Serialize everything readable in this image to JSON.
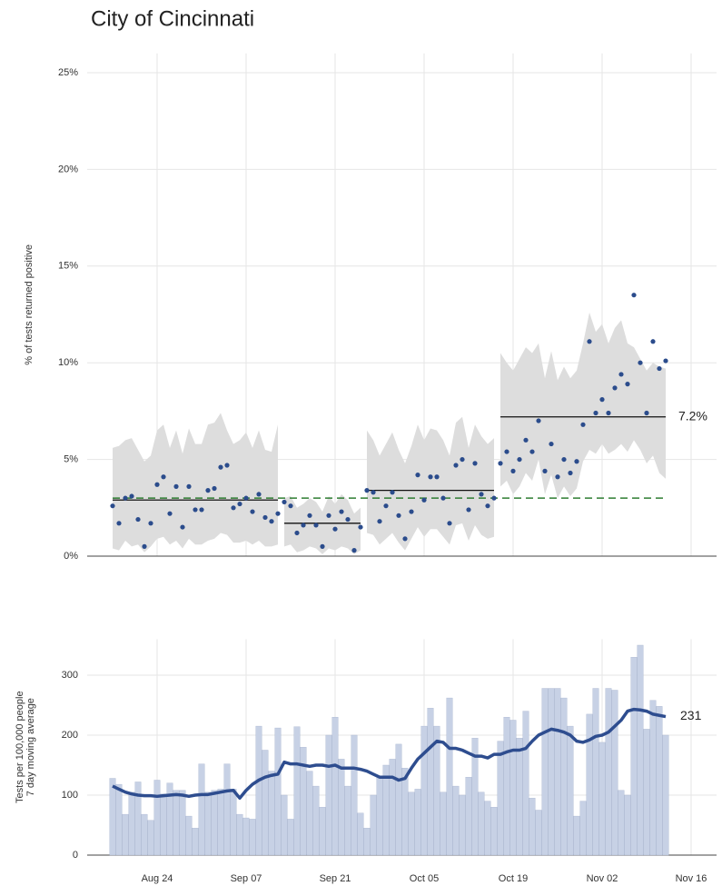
{
  "chart_data": [
    {
      "type": "scatter",
      "title": "City of Cincinnati",
      "y_label": "% of tests returned positive",
      "x": [
        -7,
        -6,
        -5,
        -4,
        -3,
        -2,
        -1,
        0,
        1,
        2,
        3,
        4,
        5,
        6,
        7,
        8,
        9,
        10,
        11,
        12,
        13,
        14,
        15,
        16,
        17,
        18,
        19,
        20,
        21,
        22,
        23,
        24,
        25,
        26,
        27,
        28,
        29,
        30,
        31,
        32,
        33,
        34,
        35,
        36,
        37,
        38,
        39,
        40,
        41,
        42,
        43,
        44,
        45,
        46,
        47,
        48,
        49,
        50,
        51,
        52,
        53,
        54,
        55,
        56,
        57,
        58,
        59,
        60,
        61,
        62,
        63,
        64,
        65,
        66,
        67,
        68,
        69,
        70,
        71,
        72,
        73,
        74,
        75,
        76,
        77,
        78,
        79,
        80
      ],
      "values": [
        2.6,
        1.7,
        3.0,
        3.1,
        1.9,
        0.5,
        1.7,
        3.7,
        4.1,
        2.2,
        3.6,
        1.5,
        3.6,
        2.4,
        2.4,
        3.4,
        3.5,
        4.6,
        4.7,
        2.5,
        2.7,
        3.0,
        2.3,
        3.2,
        2.0,
        1.8,
        2.2,
        2.8,
        2.6,
        1.2,
        1.6,
        2.1,
        1.6,
        0.5,
        2.1,
        1.4,
        2.3,
        1.9,
        0.3,
        1.5,
        3.4,
        3.3,
        1.8,
        2.6,
        3.3,
        2.1,
        0.9,
        2.3,
        4.2,
        2.9,
        4.1,
        4.1,
        3.0,
        1.7,
        4.7,
        5.0,
        2.4,
        4.8,
        3.2,
        2.6,
        3.0,
        4.8,
        5.4,
        4.4,
        5.0,
        6.0,
        5.4,
        7.0,
        4.4,
        5.8,
        4.1,
        5.0,
        4.3,
        4.9,
        6.8,
        11.1,
        7.4,
        8.1,
        7.4,
        8.7,
        9.4,
        8.9,
        13.5,
        10.0,
        7.4,
        11.1,
        9.7,
        10.1
      ],
      "band_lower": [
        0.4,
        0.3,
        0.8,
        0.5,
        0.6,
        0.2,
        0.5,
        0.9,
        1.0,
        0.6,
        0.8,
        0.4,
        0.9,
        0.6,
        0.6,
        0.8,
        0.9,
        1.2,
        1.1,
        0.7,
        0.7,
        0.8,
        0.6,
        0.8,
        0.5,
        0.5,
        0.6,
        0.5,
        0.6,
        0.2,
        0.3,
        0.5,
        0.4,
        0.1,
        0.4,
        0.3,
        0.5,
        0.4,
        0.1,
        0.3,
        1.2,
        1.1,
        0.6,
        0.9,
        1.2,
        0.7,
        0.3,
        0.9,
        1.5,
        1.0,
        1.4,
        1.4,
        1.0,
        0.6,
        1.6,
        1.7,
        0.8,
        1.6,
        1.1,
        0.9,
        1.0,
        3.6,
        3.9,
        3.2,
        3.6,
        4.3,
        3.9,
        5.0,
        3.2,
        4.2,
        3.0,
        3.6,
        3.1,
        3.5,
        4.9,
        5.5,
        5.3,
        5.8,
        5.3,
        5.5,
        5.8,
        5.4,
        6.0,
        5.5,
        4.8,
        5.2,
        4.3,
        4.0
      ],
      "band_upper": [
        5.6,
        5.7,
        6.0,
        6.1,
        5.5,
        4.9,
        5.2,
        6.5,
        6.8,
        5.6,
        6.5,
        5.3,
        6.6,
        5.8,
        5.8,
        6.8,
        6.9,
        7.4,
        6.5,
        5.8,
        6.0,
        6.4,
        5.6,
        6.5,
        5.5,
        5.4,
        6.8,
        3.0,
        3.1,
        2.5,
        2.7,
        3.0,
        2.8,
        2.3,
        3.1,
        2.7,
        3.2,
        2.9,
        2.2,
        2.5,
        6.5,
        6.0,
        5.2,
        5.8,
        6.4,
        5.5,
        4.8,
        5.7,
        6.8,
        6.0,
        6.6,
        6.5,
        6.0,
        5.2,
        6.9,
        7.2,
        5.6,
        6.8,
        6.2,
        5.8,
        6.1,
        10.5,
        10.0,
        9.6,
        10.2,
        10.8,
        10.5,
        11.0,
        9.2,
        10.6,
        9.1,
        9.8,
        9.2,
        9.6,
        11.0,
        12.6,
        11.6,
        12.0,
        11.0,
        11.8,
        12.2,
        11.0,
        10.8,
        10.2,
        9.6,
        10.0,
        9.8,
        9.7
      ],
      "color": "#2b4c8c",
      "band_color": "#dddddd",
      "segments": [
        {
          "start": -7,
          "end": 19,
          "value": 2.9
        },
        {
          "start": 20,
          "end": 32,
          "value": 1.7
        },
        {
          "start": 33,
          "end": 53,
          "value": 3.4
        },
        {
          "start": 54,
          "end": 80,
          "value": 7.2,
          "label": "7.2%"
        }
      ],
      "reference": {
        "value": 3.0,
        "color": "#2e7d32"
      },
      "xlim": [
        -11,
        88
      ],
      "ylim": [
        0,
        26
      ],
      "yticks": [
        {
          "value": 0,
          "label": "0%"
        },
        {
          "value": 5,
          "label": "5%"
        },
        {
          "value": 10,
          "label": "10%"
        },
        {
          "value": 15,
          "label": "15%"
        },
        {
          "value": 20,
          "label": "20%"
        },
        {
          "value": 25,
          "label": "25%"
        }
      ],
      "grid": true
    },
    {
      "type": "bar_line",
      "y_label": [
        "Tests per 100,000 people",
        "7 day moving average"
      ],
      "x": [
        -7,
        -6,
        -5,
        -4,
        -3,
        -2,
        -1,
        0,
        1,
        2,
        3,
        4,
        5,
        6,
        7,
        8,
        9,
        10,
        11,
        12,
        13,
        14,
        15,
        16,
        17,
        18,
        19,
        20,
        21,
        22,
        23,
        24,
        25,
        26,
        27,
        28,
        29,
        30,
        31,
        32,
        33,
        34,
        35,
        36,
        37,
        38,
        39,
        40,
        41,
        42,
        43,
        44,
        45,
        46,
        47,
        48,
        49,
        50,
        51,
        52,
        53,
        54,
        55,
        56,
        57,
        58,
        59,
        60,
        61,
        62,
        63,
        64,
        65,
        66,
        67,
        68,
        69,
        70,
        71,
        72,
        73,
        74,
        75,
        76,
        77,
        78,
        79,
        80
      ],
      "series": [
        {
          "color": "#c7d1e5",
          "values": [
            128,
            118,
            68,
            105,
            122,
            68,
            58,
            125,
            102,
            120,
            108,
            108,
            65,
            45,
            152,
            105,
            108,
            110,
            152,
            110,
            68,
            62,
            60,
            215,
            175,
            140,
            212,
            100,
            60,
            214,
            180,
            140,
            115,
            80,
            200,
            230,
            160,
            115,
            200,
            70,
            45,
            100,
            130,
            150,
            160,
            185,
            145,
            105,
            110,
            215,
            245,
            215,
            105,
            262,
            115,
            100,
            130,
            195,
            105,
            90,
            80,
            190,
            230,
            225,
            195,
            240,
            95,
            75,
            278,
            278,
            278,
            262,
            215,
            65,
            90,
            235,
            278,
            188,
            278,
            275,
            108,
            100,
            330,
            350,
            210,
            258,
            248,
            200
          ]
        },
        {
          "color": "#2e4d8f",
          "values": [
            115,
            110,
            105,
            102,
            100,
            99,
            99,
            98,
            99,
            100,
            101,
            100,
            98,
            100,
            101,
            101,
            103,
            105,
            107,
            108,
            95,
            108,
            118,
            125,
            130,
            133,
            135,
            155,
            152,
            152,
            150,
            148,
            150,
            150,
            148,
            150,
            145,
            145,
            145,
            143,
            140,
            135,
            130,
            130,
            130,
            125,
            128,
            145,
            160,
            170,
            180,
            190,
            188,
            178,
            178,
            175,
            170,
            165,
            165,
            162,
            168,
            168,
            172,
            175,
            175,
            178,
            190,
            200,
            205,
            210,
            208,
            205,
            200,
            190,
            188,
            192,
            198,
            200,
            205,
            215,
            225,
            240,
            243,
            242,
            240,
            235,
            233,
            231
          ]
        }
      ],
      "xlim": [
        -11,
        88
      ],
      "ylim": [
        0,
        360
      ],
      "xticks": [
        {
          "value": 0,
          "label": "Aug 24"
        },
        {
          "value": 14,
          "label": "Sep 07"
        },
        {
          "value": 28,
          "label": "Sep 21"
        },
        {
          "value": 42,
          "label": "Oct 05"
        },
        {
          "value": 56,
          "label": "Oct 19"
        },
        {
          "value": 70,
          "label": "Nov 02"
        },
        {
          "value": 84,
          "label": "Nov 16"
        }
      ],
      "yticks": [
        0,
        100,
        200,
        300
      ],
      "grid": true
    }
  ]
}
